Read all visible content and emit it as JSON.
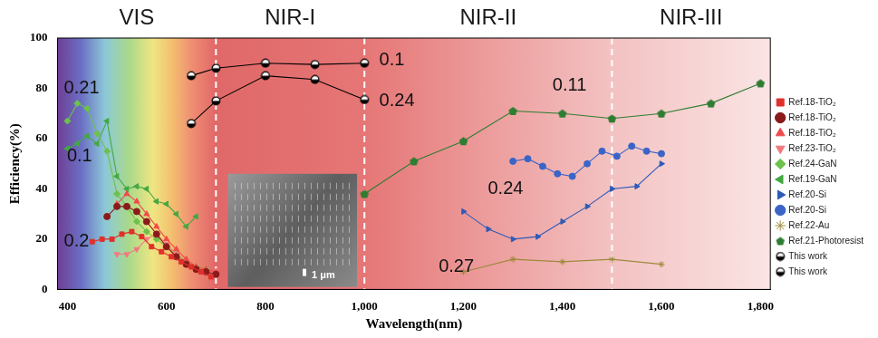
{
  "chart_data": {
    "type": "line",
    "x_label": "Wavelength(nm)",
    "y_label": "Efficiency(%)",
    "xlim": [
      380,
      1820
    ],
    "xticks": [
      400,
      600,
      800,
      1000,
      1200,
      1400,
      1600,
      1800
    ],
    "ylim": [
      0,
      100
    ],
    "yticks": [
      0,
      20,
      40,
      60,
      80,
      100
    ],
    "grid": false,
    "legend": "right",
    "regions": [
      "VIS",
      "NIR-I",
      "NIR-II",
      "NIR-III"
    ],
    "region_boundaries": [
      700,
      1000,
      1500
    ],
    "annotations": [
      "0.21",
      "0.1",
      "0.2",
      "0.1",
      "0.24",
      "0.11",
      "0.24",
      "0.27"
    ],
    "inset_label": "1 μm",
    "series": [
      {
        "name": "Ref.18-TiO₂",
        "color": "#e0302a",
        "marker": "square",
        "x": [
          450,
          470,
          490,
          510,
          530,
          550,
          570,
          590,
          610,
          630,
          650,
          670,
          690
        ],
        "values": [
          19,
          20,
          20,
          22,
          23,
          21,
          17,
          15,
          13,
          11,
          9,
          7,
          5
        ]
      },
      {
        "name": "Ref.18-TiO₂",
        "color": "#8b1a1a",
        "marker": "circle",
        "x": [
          480,
          500,
          520,
          540,
          560,
          580,
          600,
          620,
          640,
          660,
          680,
          700
        ],
        "values": [
          29,
          33,
          33,
          31,
          27,
          22,
          17,
          13,
          10,
          8,
          7,
          6
        ]
      },
      {
        "name": "Ref.18-TiO₂",
        "color": "#f04a4a",
        "marker": "triangle",
        "x": [
          500,
          520,
          540,
          560,
          580,
          600,
          620,
          640,
          660,
          680,
          700
        ],
        "values": [
          34,
          38,
          35,
          30,
          25,
          20,
          16,
          12,
          9,
          8,
          7
        ]
      },
      {
        "name": "Ref.23-TiO₂",
        "color": "#f07a80",
        "marker": "triangle_down",
        "x": [
          500,
          520,
          540,
          560,
          580,
          600,
          620,
          640,
          660,
          680,
          700
        ],
        "values": [
          14,
          14,
          16,
          20,
          22,
          18,
          14,
          10,
          8,
          7,
          6
        ]
      },
      {
        "name": "Ref.24-GaN",
        "color": "#6cc24a",
        "marker": "diamond",
        "x": [
          400,
          420,
          440,
          460,
          480,
          500,
          520,
          540,
          560,
          580,
          600,
          620,
          640,
          660,
          680
        ],
        "values": [
          67,
          74,
          72,
          62,
          55,
          38,
          33,
          27,
          23,
          20,
          17,
          14,
          11,
          9,
          8
        ]
      },
      {
        "name": "Ref.19-GaN",
        "color": "#43a843",
        "marker": "triangle_left",
        "x": [
          400,
          420,
          440,
          460,
          480,
          500,
          520,
          540,
          560,
          580,
          600,
          620,
          640,
          660
        ],
        "values": [
          56,
          58,
          61,
          58,
          67,
          45,
          40,
          41,
          40,
          35,
          34,
          30,
          25,
          29
        ]
      },
      {
        "name": "Ref.20-Si",
        "color": "#2e5ab8",
        "marker": "triangle_right",
        "x": [
          1200,
          1250,
          1300,
          1350,
          1400,
          1450,
          1500,
          1550,
          1600
        ],
        "values": [
          31,
          24,
          20,
          21,
          27,
          33,
          40,
          41,
          50
        ]
      },
      {
        "name": "Ref.20-Si",
        "color": "#3a64c8",
        "marker": "circle",
        "x": [
          1300,
          1330,
          1360,
          1390,
          1420,
          1450,
          1480,
          1510,
          1540,
          1570,
          1600
        ],
        "values": [
          51,
          52,
          49,
          46,
          45,
          50,
          55,
          53,
          57,
          55,
          54
        ]
      },
      {
        "name": "Ref.22-Au",
        "color": "#9c8a3c",
        "marker": "star",
        "x": [
          1200,
          1300,
          1400,
          1500,
          1600
        ],
        "values": [
          7,
          12,
          11,
          12,
          10
        ]
      },
      {
        "name": "Ref.21-Photoresist",
        "color": "#2e7d32",
        "marker": "pentagon",
        "x": [
          1000,
          1100,
          1200,
          1300,
          1400,
          1500,
          1600,
          1700,
          1800
        ],
        "values": [
          38,
          51,
          59,
          71,
          70,
          68,
          70,
          74,
          82
        ]
      },
      {
        "name": "This work",
        "color": "#000000",
        "marker": "half_circle",
        "x": [
          650,
          700,
          800,
          900,
          1000
        ],
        "values": [
          85,
          88,
          90,
          89.5,
          90
        ]
      },
      {
        "name": "This work",
        "color": "#000000",
        "marker": "half_circle",
        "x": [
          650,
          700,
          800,
          900,
          1000
        ],
        "values": [
          66,
          75,
          85,
          83.5,
          75.5
        ]
      }
    ]
  }
}
